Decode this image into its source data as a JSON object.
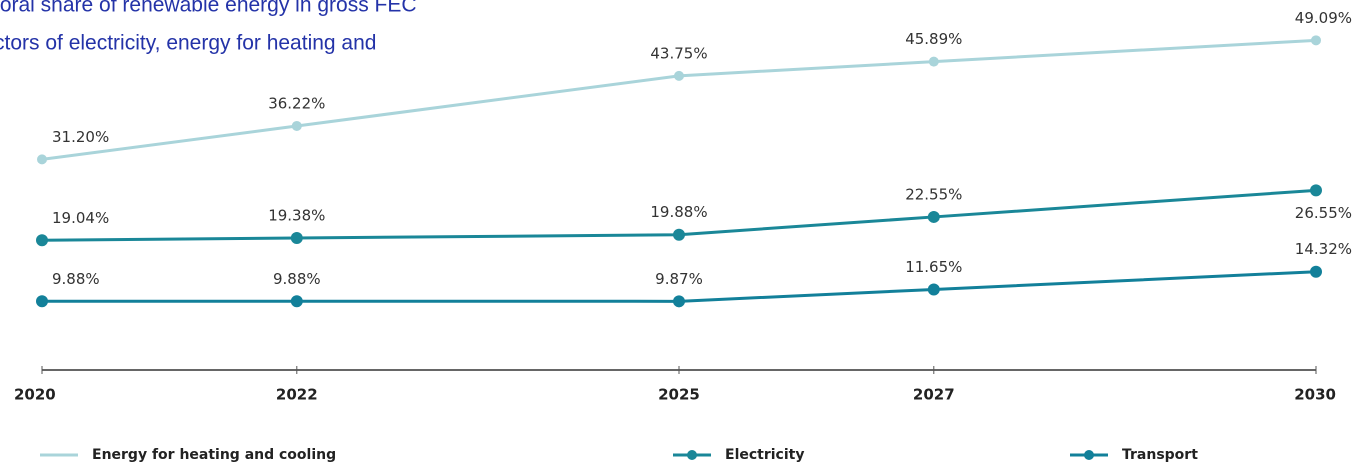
{
  "chart_data": {
    "type": "line",
    "title": [
      "toral share of renewable energy in gross FEC",
      "ctors of electricity, energy for heating and"
    ],
    "x": [
      2020,
      2022,
      2025,
      2027,
      2030
    ],
    "xlim": [
      2020,
      2030
    ],
    "xticks": [
      2020,
      2022,
      2025,
      2027,
      2030
    ],
    "ylim": [
      0,
      55
    ],
    "series": [
      {
        "name": "Energy for heating and cooling",
        "color": "#a9d4da",
        "markers": false,
        "values": [
          31.2,
          36.22,
          43.75,
          45.89,
          49.09
        ],
        "value_labels": [
          "31.20%",
          "36.22%",
          "43.75%",
          "45.89%",
          "49.09%"
        ]
      },
      {
        "name": "Electricity",
        "color": "#1a8798",
        "markers": true,
        "values": [
          19.04,
          19.38,
          19.88,
          22.55,
          26.55
        ],
        "value_labels": [
          "19.04%",
          "19.38%",
          "19.88%",
          "22.55%",
          "26.55%"
        ]
      },
      {
        "name": "Transport",
        "color": "#12809a",
        "markers": true,
        "values": [
          9.88,
          9.88,
          9.87,
          11.65,
          14.32
        ],
        "value_labels": [
          "9.88%",
          "9.88%",
          "9.87%",
          "11.65%",
          "14.32%"
        ]
      }
    ],
    "legend": "bottom"
  }
}
